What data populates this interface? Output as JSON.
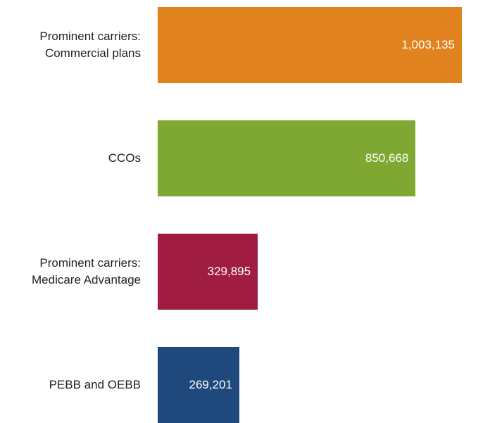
{
  "chart_data": {
    "type": "bar",
    "orientation": "horizontal",
    "categories": [
      "Prominent carriers:\nCommercial plans",
      "CCOs",
      "Prominent carriers:\nMedicare Advantage",
      "PEBB and OEBB"
    ],
    "values": [
      1003135,
      850668,
      329895,
      269201
    ],
    "value_labels": [
      "1,003,135",
      "850,668",
      "329,895",
      "269,201"
    ],
    "colors": [
      "#e0821e",
      "#7ea832",
      "#a01c40",
      "#1f487c"
    ]
  }
}
